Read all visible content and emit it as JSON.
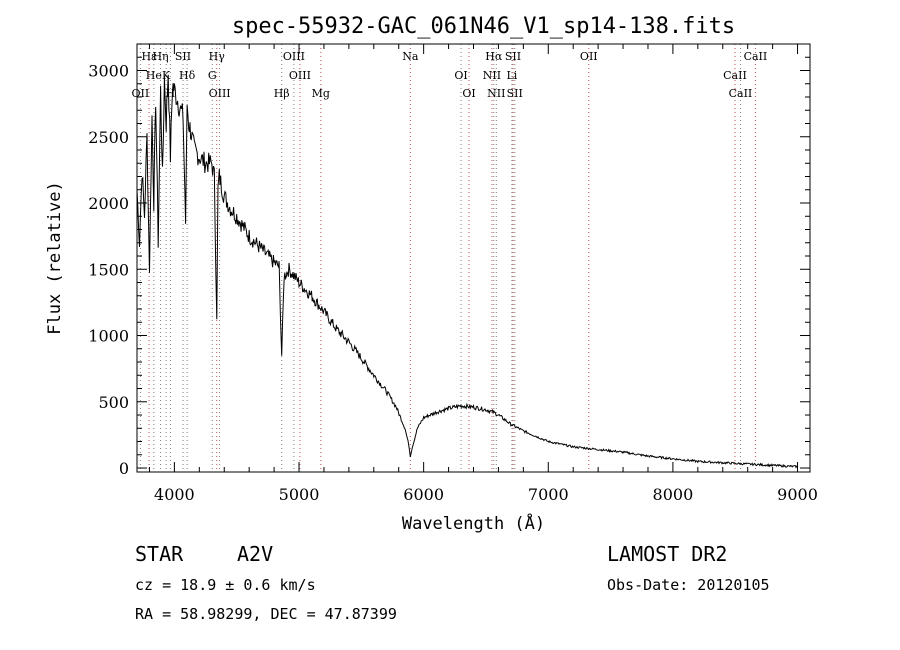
{
  "chart_data": {
    "type": "line",
    "title": "spec-55932-GAC_061N46_V1_sp14-138.fits",
    "xlabel": "Wavelength (Å)",
    "ylabel": "Flux (relative)",
    "xlim": [
      3700,
      9100
    ],
    "ylim": [
      -30,
      3200
    ],
    "xticks": [
      4000,
      5000,
      6000,
      7000,
      8000,
      9000
    ],
    "yticks": [
      0,
      500,
      1000,
      1500,
      2000,
      2500,
      3000
    ],
    "grid": false,
    "series": [
      {
        "x": [
          3700,
          3720,
          3740,
          3760,
          3780,
          3800,
          3820,
          3835,
          3850,
          3870,
          3889,
          3905,
          3920,
          3934,
          3950,
          3968,
          3985,
          4000,
          4020,
          4050,
          4070,
          4090,
          4102,
          4115,
          4130,
          4160,
          4200,
          4250,
          4300,
          4320,
          4340,
          4350,
          4360,
          4400,
          4450,
          4500,
          4600,
          4700,
          4800,
          4840,
          4861,
          4880,
          4920,
          5000,
          5100,
          5200,
          5300,
          5400,
          5500,
          5600,
          5700,
          5780,
          5850,
          5880,
          5893,
          5910,
          5950,
          6000,
          6100,
          6200,
          6300,
          6400,
          6500,
          6563,
          6600,
          6700,
          6800,
          6900,
          7000,
          7200,
          7400,
          7600,
          7800,
          8000,
          8200,
          8400,
          8600,
          8800,
          9000
        ],
        "y": [
          2100,
          1700,
          2250,
          1900,
          2500,
          1500,
          2650,
          2000,
          2800,
          1700,
          2850,
          2200,
          2950,
          2600,
          3000,
          2350,
          2900,
          2850,
          2800,
          2700,
          2650,
          1850,
          2750,
          2600,
          2550,
          2400,
          2350,
          2300,
          2300,
          2200,
          1150,
          2100,
          2200,
          2050,
          1960,
          1900,
          1750,
          1650,
          1550,
          1520,
          850,
          1450,
          1500,
          1400,
          1300,
          1180,
          1050,
          950,
          830,
          700,
          580,
          460,
          300,
          180,
          90,
          160,
          300,
          380,
          420,
          450,
          470,
          460,
          440,
          420,
          400,
          330,
          280,
          240,
          200,
          160,
          140,
          120,
          90,
          70,
          50,
          40,
          30,
          20,
          10
        ]
      }
    ],
    "lines": [
      {
        "label": "Hε",
        "wl": 3797,
        "color": "#c05050"
      },
      {
        "label": "He",
        "wl": 3835,
        "color": "#808080"
      },
      {
        "label": "OII",
        "wl": 3727,
        "color": "#808080"
      },
      {
        "label": "Hη",
        "wl": 3889,
        "color": "#808080"
      },
      {
        "label": "K",
        "wl": 3934,
        "color": "#808080"
      },
      {
        "label": "H",
        "wl": 3968,
        "color": "#808080"
      },
      {
        "label": "SII",
        "wl": 4069,
        "color": "#808080"
      },
      {
        "label": "Hδ",
        "wl": 4102,
        "color": "#808080"
      },
      {
        "label": "OIII",
        "wl": 4363,
        "color": "#808080"
      },
      {
        "label": "Hγ",
        "wl": 4340,
        "color": "#c05050"
      },
      {
        "label": "G",
        "wl": 4304,
        "color": "#808080"
      },
      {
        "label": "Hβ",
        "wl": 4861,
        "color": "#808080"
      },
      {
        "label": "OIII",
        "wl": 4959,
        "color": "#808080"
      },
      {
        "label": "OIII",
        "wl": 5007,
        "color": "#c05050"
      },
      {
        "label": "Mg",
        "wl": 5175,
        "color": "#c05050"
      },
      {
        "label": "Na",
        "wl": 5893,
        "color": "#c05050"
      },
      {
        "label": "OI",
        "wl": 6300,
        "color": "#808080"
      },
      {
        "label": "OI",
        "wl": 6364,
        "color": "#c05050"
      },
      {
        "label": "Hα",
        "wl": 6563,
        "color": "#808080"
      },
      {
        "label": "NII",
        "wl": 6548,
        "color": "#c05050"
      },
      {
        "label": "NII",
        "wl": 6583,
        "color": "#808080"
      },
      {
        "label": "SII",
        "wl": 6717,
        "color": "#c05050"
      },
      {
        "label": "Li",
        "wl": 6708,
        "color": "#808080"
      },
      {
        "label": "SII",
        "wl": 6731,
        "color": "#808080"
      },
      {
        "label": "OII",
        "wl": 7325,
        "color": "#c05050"
      },
      {
        "label": "CaII",
        "wl": 8498,
        "color": "#c05050"
      },
      {
        "label": "CaII",
        "wl": 8542,
        "color": "#808080"
      },
      {
        "label": "CaII",
        "wl": 8662,
        "color": "#c05050"
      }
    ]
  },
  "info": {
    "class_label": "STAR",
    "subclass": "A2V",
    "survey": "LAMOST DR2",
    "cz": "cz = 18.9 ± 0.6 km/s",
    "obs_date": "Obs-Date: 20120105",
    "radec": "RA =  58.98299, DEC =  47.87399"
  }
}
